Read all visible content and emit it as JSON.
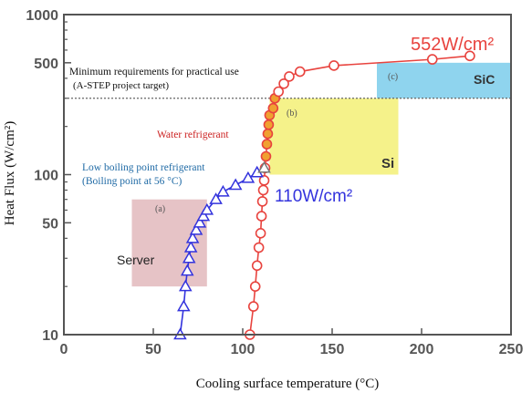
{
  "chart_data": {
    "type": "scatter",
    "xlabel": "Cooling surface temperature (°C)",
    "ylabel": "Heat Flux (W/cm²)",
    "xlim": [
      0,
      250
    ],
    "ylim": [
      10,
      1000
    ],
    "yscale": "log",
    "xticks": [
      "0",
      "50",
      "100",
      "150",
      "200",
      "250"
    ],
    "yticks": [
      {
        "value": 10,
        "label": "10"
      },
      {
        "value": 50,
        "label": "50"
      },
      {
        "value": 100,
        "label": "100"
      },
      {
        "value": 500,
        "label": "500"
      },
      {
        "value": 1000,
        "label": "1000"
      }
    ],
    "grid": false,
    "series": [
      {
        "name": "Water refrigerant",
        "color": "#e8433e",
        "marker": "circle",
        "points": [
          [
            104,
            10
          ],
          [
            106,
            15
          ],
          [
            107,
            20
          ],
          [
            108,
            27
          ],
          [
            109,
            35
          ],
          [
            110,
            43
          ],
          [
            110.5,
            55
          ],
          [
            111,
            68
          ],
          [
            111.5,
            80
          ],
          [
            112,
            92
          ],
          [
            112.5,
            110
          ],
          [
            113,
            130
          ],
          [
            113.5,
            155
          ],
          [
            114,
            180
          ],
          [
            114.5,
            205
          ],
          [
            115,
            235
          ],
          [
            117,
            260
          ],
          [
            118,
            300
          ],
          [
            120,
            330
          ],
          [
            123,
            370
          ],
          [
            126,
            410
          ],
          [
            132,
            440
          ],
          [
            151,
            480
          ],
          [
            206,
            525
          ],
          [
            227,
            552
          ]
        ]
      },
      {
        "name": "Low boiling point refrigerant",
        "color": "#3333dd",
        "marker": "triangle",
        "points": [
          [
            65,
            10
          ],
          [
            67,
            15
          ],
          [
            68,
            20
          ],
          [
            69,
            25
          ],
          [
            70,
            30
          ],
          [
            71,
            35
          ],
          [
            72,
            40
          ],
          [
            74,
            45
          ],
          [
            76,
            50
          ],
          [
            78,
            55
          ],
          [
            80,
            60
          ],
          [
            85,
            70
          ],
          [
            89,
            78
          ],
          [
            96,
            86
          ],
          [
            103,
            95
          ],
          [
            108,
            103
          ],
          [
            112,
            110
          ]
        ]
      }
    ],
    "regions": [
      {
        "label": "(a)",
        "name": "Server",
        "x": [
          38,
          80
        ],
        "y": [
          20,
          70
        ],
        "color": "#e6c3c6"
      },
      {
        "label": "(b)",
        "name": "Si",
        "x": [
          115,
          187
        ],
        "y": [
          100,
          300
        ],
        "color": "#f5f28a"
      },
      {
        "label": "(c)",
        "name": "SiC",
        "x": [
          175,
          250
        ],
        "y": [
          300,
          500
        ],
        "color": "#8fd4ee"
      }
    ],
    "reference_line": {
      "y": 300,
      "label": "Minimum requirements for practical use",
      "sublabel": "(A-STEP project target)"
    },
    "annotations": [
      {
        "text": "552W/cm²",
        "color": "#e8433e"
      },
      {
        "text": "110W/cm²",
        "color": "#3333dd"
      },
      {
        "text": "Water refrigerant",
        "color": "#cc2222"
      },
      {
        "text": "Low boiling point refrigerant",
        "color": "#1f6aa5"
      },
      {
        "text": "(Boiling point at 56 °C)",
        "color": "#1f6aa5"
      }
    ]
  }
}
